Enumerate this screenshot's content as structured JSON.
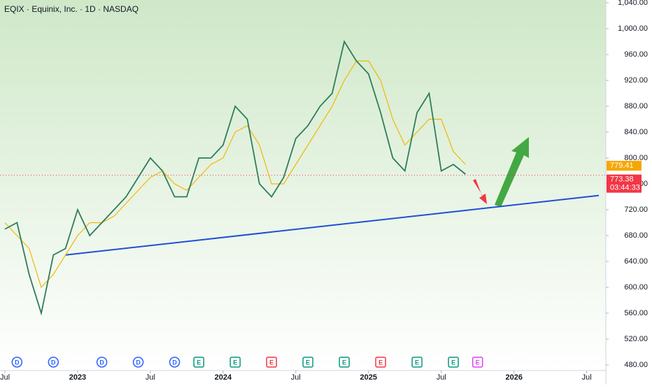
{
  "chart_data": {
    "type": "line",
    "title": "EQIX · Equinix, Inc. · 1D · NASDAQ",
    "x": [
      "2022-07",
      "2022-08",
      "2022-09",
      "2022-10",
      "2022-11",
      "2022-12",
      "2023-01",
      "2023-02",
      "2023-03",
      "2023-04",
      "2023-05",
      "2023-06",
      "2023-07",
      "2023-08",
      "2023-09",
      "2023-10",
      "2023-11",
      "2023-12",
      "2024-01",
      "2024-02",
      "2024-03",
      "2024-04",
      "2024-05",
      "2024-06",
      "2024-07",
      "2024-08",
      "2024-09",
      "2024-10",
      "2024-11",
      "2024-12",
      "2025-01",
      "2025-02",
      "2025-03",
      "2025-04",
      "2025-05",
      "2025-06",
      "2025-07",
      "2025-08",
      "2025-09"
    ],
    "series": [
      {
        "color": "#2e7d5b",
        "values": [
          690,
          700,
          620,
          560,
          650,
          660,
          720,
          680,
          700,
          720,
          740,
          770,
          800,
          780,
          740,
          740,
          800,
          800,
          820,
          880,
          860,
          760,
          740,
          770,
          830,
          850,
          880,
          900,
          980,
          950,
          930,
          870,
          800,
          780,
          870,
          900,
          780,
          790,
          775
        ]
      },
      {
        "color": "#f2b705",
        "values": [
          700,
          680,
          660,
          600,
          620,
          650,
          680,
          700,
          700,
          710,
          730,
          750,
          770,
          780,
          760,
          750,
          770,
          790,
          800,
          840,
          850,
          820,
          760,
          760,
          790,
          820,
          850,
          880,
          920,
          950,
          950,
          920,
          860,
          820,
          840,
          860,
          860,
          810,
          790
        ]
      }
    ],
    "trendline": {
      "color": "#1e4fd8",
      "x": [
        "2022-12",
        "2026-08"
      ],
      "values": [
        650,
        742
      ]
    },
    "xlim": [
      "2022-07",
      "2026-08"
    ],
    "xticks": [
      {
        "value": "2022-07",
        "label": "Jul"
      },
      {
        "value": "2023-01",
        "label": "2023"
      },
      {
        "value": "2023-07",
        "label": "Jul"
      },
      {
        "value": "2024-01",
        "label": "2024"
      },
      {
        "value": "2024-07",
        "label": "Jul"
      },
      {
        "value": "2025-01",
        "label": "2025"
      },
      {
        "value": "2025-07",
        "label": "Jul"
      },
      {
        "value": "2026-01",
        "label": "2026"
      },
      {
        "value": "2026-07",
        "label": "Jul"
      }
    ],
    "ylim": [
      480,
      1040
    ],
    "yticks": [
      {
        "value": 480,
        "label": "480.00"
      },
      {
        "value": 520,
        "label": "520.00"
      },
      {
        "value": 560,
        "label": "560.00"
      },
      {
        "value": 600,
        "label": "600.00"
      },
      {
        "value": 640,
        "label": "640.00"
      },
      {
        "value": 680,
        "label": "680.00"
      },
      {
        "value": 720,
        "label": "720.00"
      },
      {
        "value": 760,
        "label": "760.00"
      },
      {
        "value": 800,
        "label": "800.00"
      },
      {
        "value": 840,
        "label": "840.00"
      },
      {
        "value": 880,
        "label": "880.00"
      },
      {
        "value": 920,
        "label": "920.00"
      },
      {
        "value": 960,
        "label": "960.00"
      },
      {
        "value": 1000,
        "label": "1,000.00"
      },
      {
        "value": 1040,
        "label": "1,040.00"
      }
    ],
    "price_labels": [
      {
        "value": 779.41,
        "label": "779.41",
        "color": "#f7a600"
      },
      {
        "value": 773.38,
        "label": "773.38",
        "color": "#f23645"
      }
    ],
    "countdown": "03:44:33",
    "events": [
      {
        "x": "2022-08",
        "label": "D",
        "color": "#2962ff"
      },
      {
        "x": "2022-11",
        "label": "D",
        "color": "#2962ff"
      },
      {
        "x": "2023-03",
        "label": "D",
        "color": "#2962ff"
      },
      {
        "x": "2023-06",
        "label": "D",
        "color": "#2962ff"
      },
      {
        "x": "2023-09",
        "label": "D",
        "color": "#2962ff"
      },
      {
        "x": "2023-11",
        "label": "E",
        "color": "#089981"
      },
      {
        "x": "2024-02",
        "label": "E",
        "color": "#089981"
      },
      {
        "x": "2024-05",
        "label": "E",
        "color": "#f23645"
      },
      {
        "x": "2024-08",
        "label": "E",
        "color": "#089981"
      },
      {
        "x": "2024-11",
        "label": "E",
        "color": "#089981"
      },
      {
        "x": "2025-02",
        "label": "E",
        "color": "#f23645"
      },
      {
        "x": "2025-05",
        "label": "E",
        "color": "#089981"
      },
      {
        "x": "2025-08",
        "label": "E",
        "color": "#089981"
      },
      {
        "x": "2025-10",
        "label": "E",
        "color": "#e040fb"
      }
    ]
  }
}
